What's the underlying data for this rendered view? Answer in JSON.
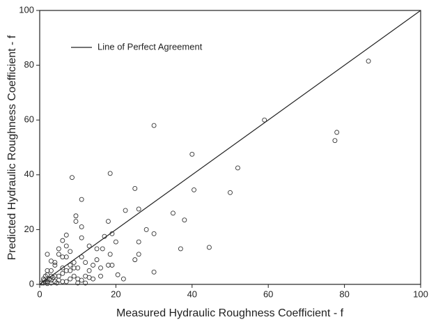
{
  "chart_data": {
    "type": "scatter",
    "xlabel": "Measured Hydraulic Roughness Coefficient - f",
    "ylabel": "Predicted Hydraulic Roughness Coefficient - f",
    "xlim": [
      0,
      100
    ],
    "ylim": [
      0,
      100
    ],
    "xticks": [
      0,
      20,
      40,
      60,
      80,
      100
    ],
    "yticks": [
      0,
      20,
      40,
      60,
      80,
      100
    ],
    "grid": false,
    "legend": "upper left",
    "color": "#333333",
    "x": [
      86.3,
      59,
      78,
      77.5,
      52,
      50,
      40,
      40.5,
      30,
      18.5,
      8.5,
      11,
      25,
      22.5,
      26,
      9.5,
      9.5,
      18,
      35,
      38,
      30,
      28,
      37,
      44.5,
      30,
      25,
      26,
      26,
      20,
      20.5,
      19,
      17,
      16.5,
      18.5,
      19,
      18,
      15,
      15,
      14,
      16,
      16,
      14,
      13,
      11,
      11,
      11,
      12,
      13,
      12,
      11,
      12,
      7,
      6,
      7,
      8,
      7,
      6,
      8,
      9,
      10,
      8,
      5,
      5,
      4,
      4,
      3,
      2,
      2,
      3,
      4,
      5,
      6,
      7,
      8,
      9,
      10,
      1,
      1.5,
      2,
      2.5,
      3,
      3.5,
      4,
      1,
      1.5,
      2,
      3,
      0.5,
      5,
      6,
      4.5,
      7,
      3,
      2,
      1.2,
      6,
      9,
      13,
      22,
      10
    ],
    "values": [
      81.5,
      60,
      55.5,
      52.5,
      42.5,
      33.5,
      47.5,
      34.5,
      58,
      40.5,
      39,
      31,
      35,
      27,
      27.5,
      25,
      23,
      23,
      26,
      23.5,
      18.5,
      20,
      13,
      13.5,
      4.5,
      9,
      11,
      15.5,
      15.5,
      3.5,
      18.5,
      17.5,
      13,
      11,
      7,
      7,
      13,
      9,
      7,
      6,
      3,
      2,
      2.5,
      21,
      17,
      10,
      8,
      5,
      3,
      1.5,
      0.5,
      18,
      16,
      14,
      12,
      10,
      10,
      7,
      6,
      6,
      5,
      13,
      11,
      8,
      7,
      8.5,
      11,
      5,
      5,
      3,
      3,
      4,
      5,
      2,
      3,
      2,
      0.5,
      1,
      1,
      2,
      1.5,
      2.5,
      1,
      2,
      3,
      3.5,
      3,
      0.5,
      1.5,
      1,
      0.5,
      1,
      0.5,
      0.3,
      1.5,
      6,
      8,
      14,
      2,
      0.5
    ],
    "line": {
      "name": "Line of Perfect Agreement",
      "x": [
        0,
        100
      ],
      "values": [
        0,
        100
      ]
    }
  }
}
